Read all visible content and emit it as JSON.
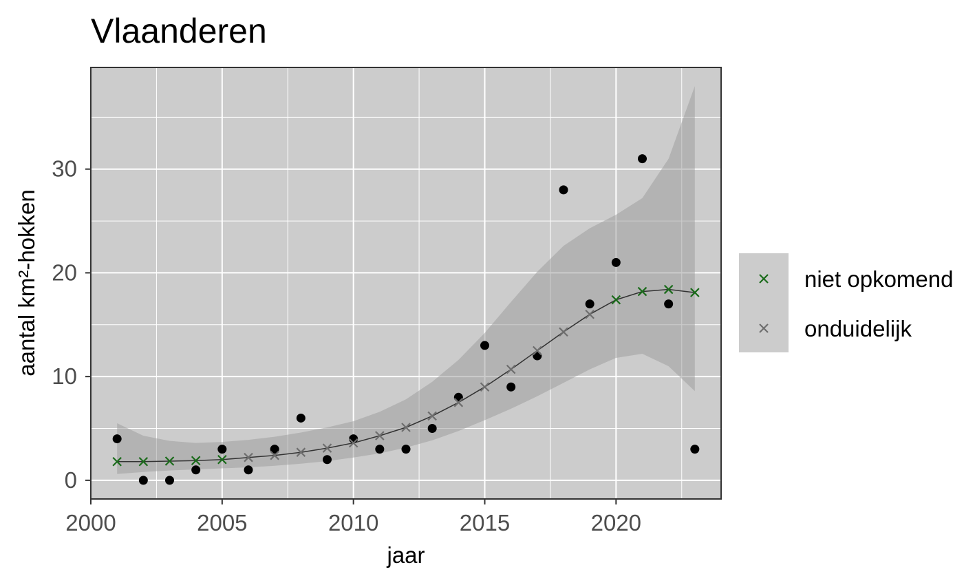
{
  "chart_data": {
    "type": "scatter",
    "title": "Vlaanderen",
    "xlabel": "jaar",
    "ylabel": "aantal km²-hokken",
    "xlim": [
      2000,
      2024
    ],
    "ylim": [
      -1.8,
      39.8
    ],
    "x_ticks": [
      2000,
      2005,
      2010,
      2015,
      2020
    ],
    "y_ticks": [
      0,
      10,
      20,
      30
    ],
    "grid": true,
    "legend_position": "right",
    "observed": {
      "x": [
        2001,
        2002,
        2003,
        2004,
        2005,
        2006,
        2007,
        2008,
        2009,
        2010,
        2011,
        2012,
        2013,
        2014,
        2015,
        2016,
        2017,
        2018,
        2019,
        2020,
        2021,
        2022,
        2023
      ],
      "y": [
        4,
        0,
        0,
        1,
        3,
        1,
        3,
        6,
        2,
        4,
        3,
        3,
        5,
        8,
        13,
        9,
        12,
        28,
        17,
        21,
        31,
        17,
        3
      ]
    },
    "fit": {
      "x": [
        2001,
        2002,
        2003,
        2004,
        2005,
        2006,
        2007,
        2008,
        2009,
        2010,
        2011,
        2012,
        2013,
        2014,
        2015,
        2016,
        2017,
        2018,
        2019,
        2020,
        2021,
        2022,
        2023
      ],
      "y": [
        1.8,
        1.8,
        1.85,
        1.9,
        2.0,
        2.2,
        2.4,
        2.7,
        3.1,
        3.6,
        4.3,
        5.1,
        6.2,
        7.5,
        9.0,
        10.7,
        12.5,
        14.3,
        16.0,
        17.4,
        18.2,
        18.4,
        18.1
      ],
      "lower": [
        0.6,
        0.8,
        0.95,
        1.05,
        1.15,
        1.25,
        1.4,
        1.6,
        1.85,
        2.2,
        2.6,
        3.15,
        3.85,
        4.75,
        5.8,
        6.9,
        8.1,
        9.4,
        10.7,
        11.8,
        12.2,
        11.0,
        8.6
      ],
      "upper": [
        5.5,
        4.3,
        3.8,
        3.6,
        3.7,
        3.9,
        4.2,
        4.6,
        5.1,
        5.7,
        6.6,
        7.8,
        9.5,
        11.6,
        14.2,
        17.2,
        20.1,
        22.6,
        24.3,
        25.6,
        27.2,
        31.0,
        38.0
      ],
      "status": [
        "niet opkomend",
        "niet opkomend",
        "niet opkomend",
        "niet opkomend",
        "niet opkomend",
        "onduidelijk",
        "onduidelijk",
        "onduidelijk",
        "onduidelijk",
        "onduidelijk",
        "onduidelijk",
        "onduidelijk",
        "onduidelijk",
        "onduidelijk",
        "onduidelijk",
        "onduidelijk",
        "onduidelijk",
        "onduidelijk",
        "onduidelijk",
        "niet opkomend",
        "niet opkomend",
        "niet opkomend",
        "niet opkomend"
      ]
    },
    "legend": [
      {
        "name": "niet opkomend",
        "color": "#1a6b1a",
        "marker": "cross"
      },
      {
        "name": "onduidelijk",
        "color": "#6e6e6e",
        "marker": "cross"
      }
    ],
    "colors": {
      "panel": "#cccccc",
      "grid": "#ffffff",
      "ribbon": "#999999",
      "fit_line": "#333333",
      "observed_point": "#000000"
    }
  }
}
